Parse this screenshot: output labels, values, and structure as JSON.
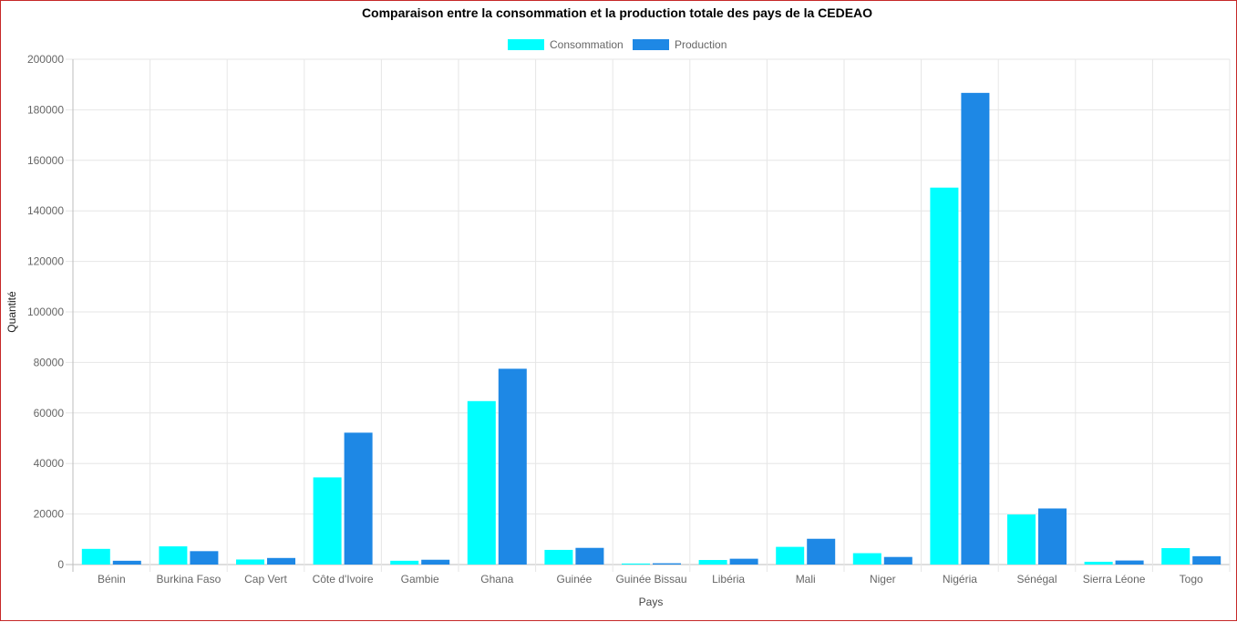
{
  "chart_data": {
    "type": "bar",
    "title": "Comparaison entre la consommation et la production totale des pays de la CEDEAO",
    "xlabel": "Pays",
    "ylabel": "Quantité",
    "ylim": [
      0,
      200000
    ],
    "yticks": [
      0,
      20000,
      40000,
      60000,
      80000,
      100000,
      120000,
      140000,
      160000,
      180000,
      200000
    ],
    "grid": true,
    "legend": "top-center",
    "categories": [
      "Bénin",
      "Burkina Faso",
      "Cap Vert",
      "Côte d'Ivoire",
      "Gambie",
      "Ghana",
      "Guinée",
      "Guinée Bissau",
      "Libéria",
      "Mali",
      "Niger",
      "Nigéria",
      "Sénégal",
      "Sierra Léone",
      "Togo"
    ],
    "series": [
      {
        "name": "Consommation",
        "color": "#00ffff",
        "values": [
          6200,
          7200,
          2000,
          34500,
          1500,
          64700,
          5800,
          400,
          1800,
          7000,
          4500,
          149200,
          19800,
          1100,
          6500
        ]
      },
      {
        "name": "Production",
        "color": "#1e88e5",
        "values": [
          1500,
          5300,
          2600,
          52200,
          1900,
          77500,
          6600,
          500,
          2300,
          10200,
          3000,
          186700,
          22200,
          1600,
          3300
        ]
      }
    ]
  }
}
